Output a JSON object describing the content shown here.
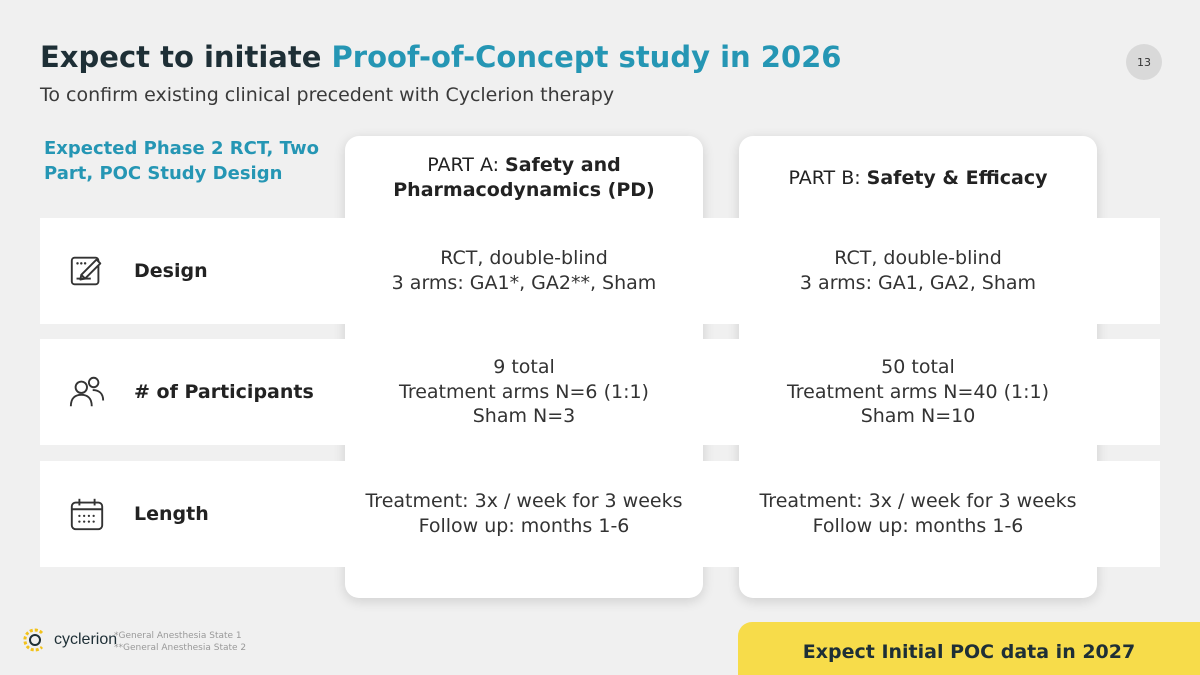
{
  "header": {
    "title_prefix": "Expect to initiate ",
    "title_accent": "Proof-of-Concept study in 2026",
    "subtitle": "To confirm existing clinical precedent with Cyclerion therapy",
    "page_number": "13"
  },
  "table": {
    "design_heading": "Expected Phase 2 RCT, Two Part, POC Study Design",
    "columns": [
      {
        "prefix": "PART A: ",
        "bold": "Safety and Pharmacodynamics (PD)"
      },
      {
        "prefix": "PART B: ",
        "bold": "Safety & Efficacy"
      }
    ],
    "rows": [
      {
        "label": "Design",
        "icon": "design-icon",
        "a": [
          "RCT, double-blind",
          "3 arms: GA1*, GA2**, Sham"
        ],
        "b": [
          "RCT, double-blind",
          "3 arms: GA1, GA2, Sham"
        ]
      },
      {
        "label": "# of Participants",
        "icon": "participants-icon",
        "a": [
          "9 total",
          "Treatment arms N=6 (1:1)",
          "Sham N=3"
        ],
        "b": [
          "50 total",
          "Treatment  arms N=40 (1:1)",
          "Sham N=10"
        ]
      },
      {
        "label": "Length",
        "icon": "calendar-icon",
        "a": [
          "Treatment: 3x / week for 3 weeks",
          "Follow up: months 1-6"
        ],
        "b": [
          "Treatment: 3x / week for 3 weeks",
          "Follow up: months 1-6"
        ]
      }
    ]
  },
  "footer": {
    "logo_text": "cyclerion",
    "footnotes": [
      "*General Anesthesia State 1",
      "**General Anesthesia State 2"
    ],
    "banner": "Expect Initial POC data in 2027"
  },
  "colors": {
    "accent": "#2596b4",
    "title": "#1e2f36",
    "banner": "#f7dc4a",
    "background": "#f0f0f0"
  }
}
